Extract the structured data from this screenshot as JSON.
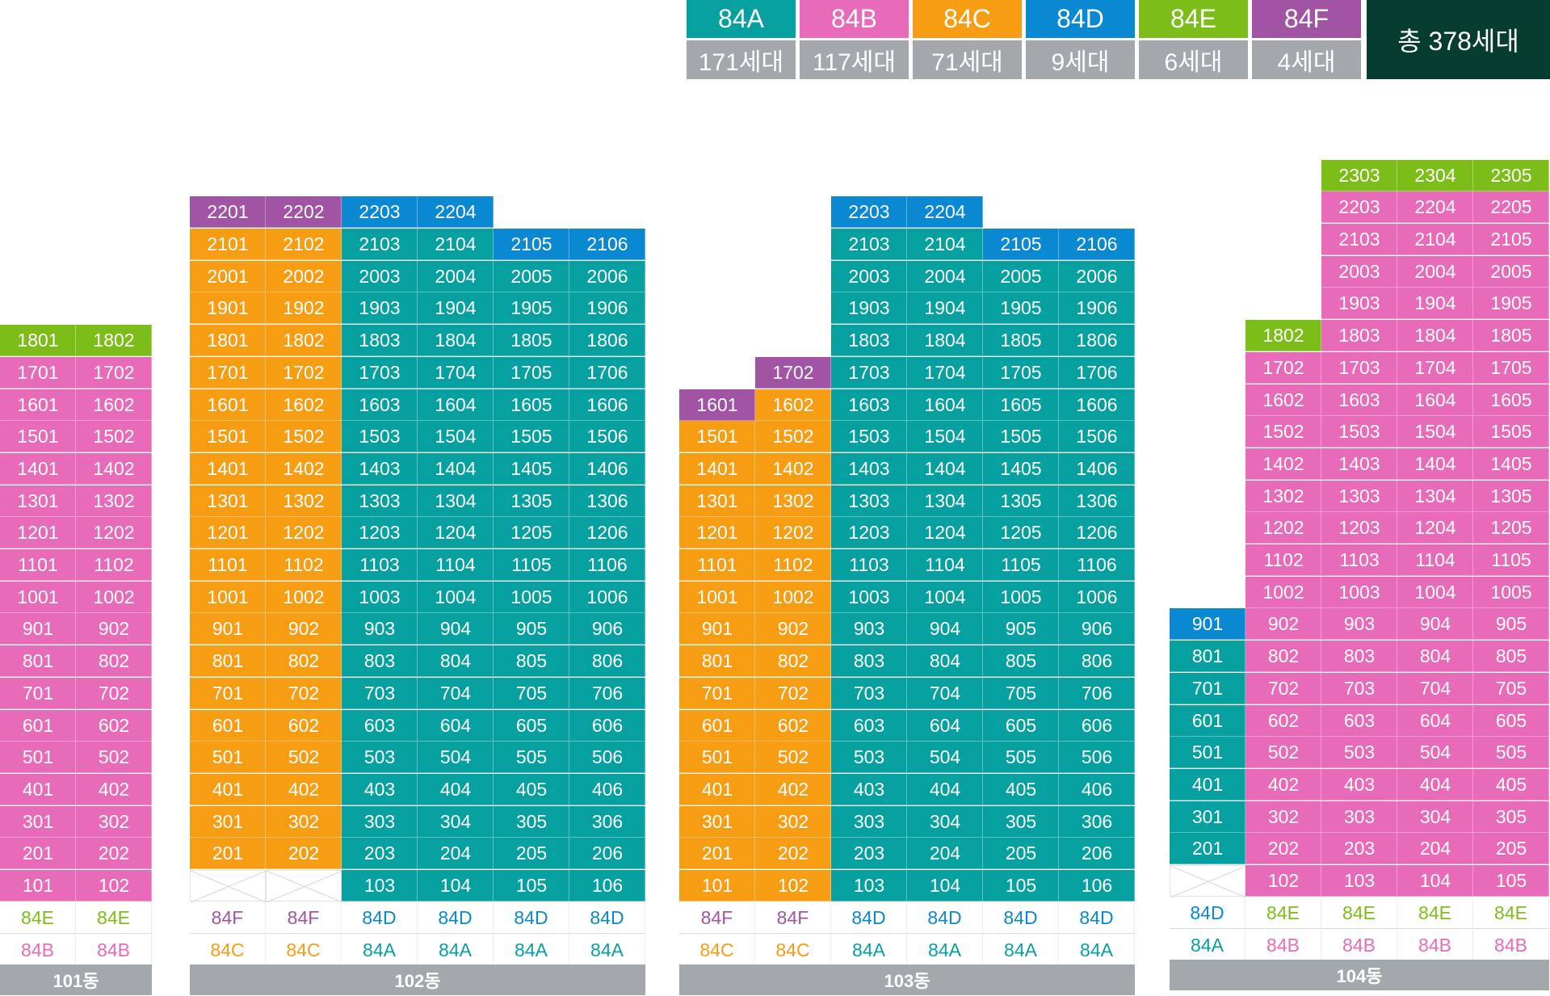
{
  "colors": {
    "84A": "#07a0a1",
    "84B": "#e86bb9",
    "84C": "#f79d13",
    "84D": "#0a88d2",
    "84E": "#7dbd19",
    "84F": "#a154a3",
    "total_bg": "#073d2e",
    "count_bg": "#a3a8ad"
  },
  "legend": {
    "items": [
      {
        "type": "84A",
        "count": "171세대"
      },
      {
        "type": "84B",
        "count": "117세대"
      },
      {
        "type": "84C",
        "count": "71세대"
      },
      {
        "type": "84D",
        "count": "9세대"
      },
      {
        "type": "84E",
        "count": "6세대"
      },
      {
        "type": "84F",
        "count": "4세대"
      }
    ],
    "total": "총 378세대"
  },
  "buildings": [
    {
      "name": "101동",
      "top_floor": 18,
      "columns": [
        {
          "unit": 1,
          "type": "84E",
          "bottom_type": "84B",
          "floors": [
            1,
            18
          ],
          "overrides": [
            {
              "floors": [
                1,
                17
              ],
              "type": "84B"
            }
          ]
        },
        {
          "unit": 2,
          "type": "84E",
          "bottom_type": "84B",
          "floors": [
            1,
            18
          ],
          "overrides": [
            {
              "floors": [
                1,
                17
              ],
              "type": "84B"
            }
          ]
        }
      ]
    },
    {
      "name": "102동",
      "top_floor": 22,
      "columns": [
        {
          "unit": 1,
          "type": "84F",
          "bottom_type": "84C",
          "floors": [
            2,
            22
          ],
          "empty": [
            1
          ],
          "overrides": [
            {
              "floors": [
                2,
                21
              ],
              "type": "84C"
            }
          ]
        },
        {
          "unit": 2,
          "type": "84F",
          "bottom_type": "84C",
          "floors": [
            2,
            22
          ],
          "empty": [
            1
          ],
          "overrides": [
            {
              "floors": [
                2,
                21
              ],
              "type": "84C"
            }
          ]
        },
        {
          "unit": 3,
          "type": "84D",
          "bottom_type": "84A",
          "floors": [
            1,
            22
          ],
          "overrides": [
            {
              "floors": [
                1,
                21
              ],
              "type": "84A"
            }
          ]
        },
        {
          "unit": 4,
          "type": "84D",
          "bottom_type": "84A",
          "floors": [
            1,
            22
          ],
          "overrides": [
            {
              "floors": [
                1,
                21
              ],
              "type": "84A"
            }
          ]
        },
        {
          "unit": 5,
          "type": "84D",
          "bottom_type": "84A",
          "floors": [
            1,
            21
          ],
          "overrides": [
            {
              "floors": [
                1,
                20
              ],
              "type": "84A"
            }
          ]
        },
        {
          "unit": 6,
          "type": "84D",
          "bottom_type": "84A",
          "floors": [
            1,
            21
          ],
          "overrides": [
            {
              "floors": [
                1,
                20
              ],
              "type": "84A"
            }
          ]
        }
      ]
    },
    {
      "name": "103동",
      "top_floor": 22,
      "columns": [
        {
          "unit": 1,
          "type": "84F",
          "bottom_type": "84C",
          "floors": [
            1,
            16
          ],
          "overrides": [
            {
              "floors": [
                1,
                15
              ],
              "type": "84C"
            }
          ]
        },
        {
          "unit": 2,
          "type": "84F",
          "bottom_type": "84C",
          "floors": [
            1,
            17
          ],
          "overrides": [
            {
              "floors": [
                1,
                16
              ],
              "type": "84C"
            }
          ]
        },
        {
          "unit": 3,
          "type": "84D",
          "bottom_type": "84A",
          "floors": [
            1,
            22
          ],
          "overrides": [
            {
              "floors": [
                1,
                21
              ],
              "type": "84A"
            }
          ]
        },
        {
          "unit": 4,
          "type": "84D",
          "bottom_type": "84A",
          "floors": [
            1,
            22
          ],
          "overrides": [
            {
              "floors": [
                1,
                21
              ],
              "type": "84A"
            }
          ]
        },
        {
          "unit": 5,
          "type": "84D",
          "bottom_type": "84A",
          "floors": [
            1,
            21
          ],
          "overrides": [
            {
              "floors": [
                1,
                20
              ],
              "type": "84A"
            }
          ]
        },
        {
          "unit": 6,
          "type": "84D",
          "bottom_type": "84A",
          "floors": [
            1,
            21
          ],
          "overrides": [
            {
              "floors": [
                1,
                20
              ],
              "type": "84A"
            }
          ]
        }
      ]
    },
    {
      "name": "104동",
      "top_floor": 23,
      "columns": [
        {
          "unit": 1,
          "type": "84D",
          "bottom_type": "84A",
          "floors": [
            2,
            9
          ],
          "empty": [
            1
          ],
          "overrides": [
            {
              "floors": [
                2,
                8
              ],
              "type": "84A"
            }
          ]
        },
        {
          "unit": 2,
          "type": "84E",
          "bottom_type": "84B",
          "floors": [
            1,
            18
          ],
          "overrides": [
            {
              "floors": [
                1,
                17
              ],
              "type": "84B"
            }
          ]
        },
        {
          "unit": 3,
          "type": "84E",
          "bottom_type": "84B",
          "floors": [
            1,
            23
          ],
          "overrides": [
            {
              "floors": [
                1,
                22
              ],
              "type": "84B"
            }
          ]
        },
        {
          "unit": 4,
          "type": "84E",
          "bottom_type": "84B",
          "floors": [
            1,
            23
          ],
          "overrides": [
            {
              "floors": [
                1,
                22
              ],
              "type": "84B"
            }
          ]
        },
        {
          "unit": 5,
          "type": "84E",
          "bottom_type": "84B",
          "floors": [
            1,
            23
          ],
          "overrides": [
            {
              "floors": [
                1,
                22
              ],
              "type": "84B"
            }
          ]
        }
      ]
    }
  ]
}
